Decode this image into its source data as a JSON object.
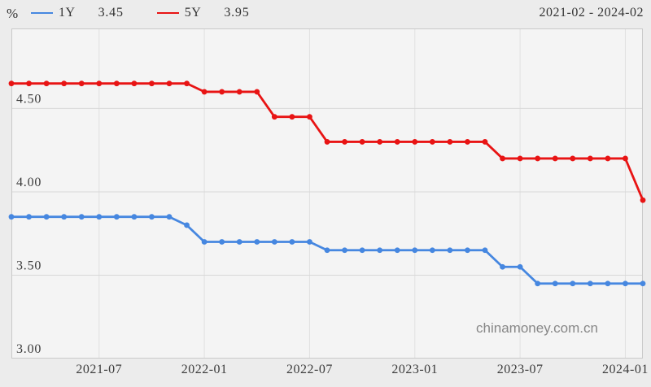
{
  "header": {
    "unit_label": "%",
    "date_range": "2021-02 - 2024-02",
    "legend": [
      {
        "name": "1Y",
        "value": "3.45",
        "color": "#4687e0"
      },
      {
        "name": "5Y",
        "value": "3.95",
        "color": "#e81414"
      }
    ]
  },
  "watermark": "chinamoney.com.cn",
  "colors": {
    "page_bg": "#ececec",
    "plot_bg": "#f4f4f4",
    "plot_border": "#c9c9c9",
    "h_grid": "#d8d8d8",
    "v_grid": "#e0e0e0",
    "tick_text": "#3c3c3c",
    "series_1y": "#4687e0",
    "series_5y": "#e81414"
  },
  "chart_data": {
    "type": "line",
    "title": "",
    "xlabel": "",
    "ylabel": "%",
    "x_range_label": "2021-02 - 2024-02",
    "grid": true,
    "legend_position": "top-left",
    "ylim": [
      3.0,
      4.98
    ],
    "yticks": [
      "3.00",
      "3.50",
      "4.00",
      "4.50"
    ],
    "ytick_values": [
      3.0,
      3.5,
      4.0,
      4.5
    ],
    "xticks": [
      "2021-07",
      "2022-01",
      "2022-07",
      "2023-01",
      "2023-07",
      "2024-01"
    ],
    "x": [
      "2021-02",
      "2021-03",
      "2021-04",
      "2021-05",
      "2021-06",
      "2021-07",
      "2021-08",
      "2021-09",
      "2021-10",
      "2021-11",
      "2021-12",
      "2022-01",
      "2022-02",
      "2022-03",
      "2022-04",
      "2022-05",
      "2022-06",
      "2022-07",
      "2022-08",
      "2022-09",
      "2022-10",
      "2022-11",
      "2022-12",
      "2023-01",
      "2023-02",
      "2023-03",
      "2023-04",
      "2023-05",
      "2023-06",
      "2023-07",
      "2023-08",
      "2023-09",
      "2023-10",
      "2023-11",
      "2023-12",
      "2024-01",
      "2024-02"
    ],
    "series": [
      {
        "name": "1Y",
        "color": "#4687e0",
        "latest": 3.45,
        "values": [
          3.85,
          3.85,
          3.85,
          3.85,
          3.85,
          3.85,
          3.85,
          3.85,
          3.85,
          3.85,
          3.8,
          3.7,
          3.7,
          3.7,
          3.7,
          3.7,
          3.7,
          3.7,
          3.65,
          3.65,
          3.65,
          3.65,
          3.65,
          3.65,
          3.65,
          3.65,
          3.65,
          3.65,
          3.55,
          3.55,
          3.45,
          3.45,
          3.45,
          3.45,
          3.45,
          3.45,
          3.45
        ]
      },
      {
        "name": "5Y",
        "color": "#e81414",
        "latest": 3.95,
        "values": [
          4.65,
          4.65,
          4.65,
          4.65,
          4.65,
          4.65,
          4.65,
          4.65,
          4.65,
          4.65,
          4.65,
          4.6,
          4.6,
          4.6,
          4.6,
          4.45,
          4.45,
          4.45,
          4.3,
          4.3,
          4.3,
          4.3,
          4.3,
          4.3,
          4.3,
          4.3,
          4.3,
          4.3,
          4.2,
          4.2,
          4.2,
          4.2,
          4.2,
          4.2,
          4.2,
          4.2,
          3.95
        ]
      }
    ]
  }
}
